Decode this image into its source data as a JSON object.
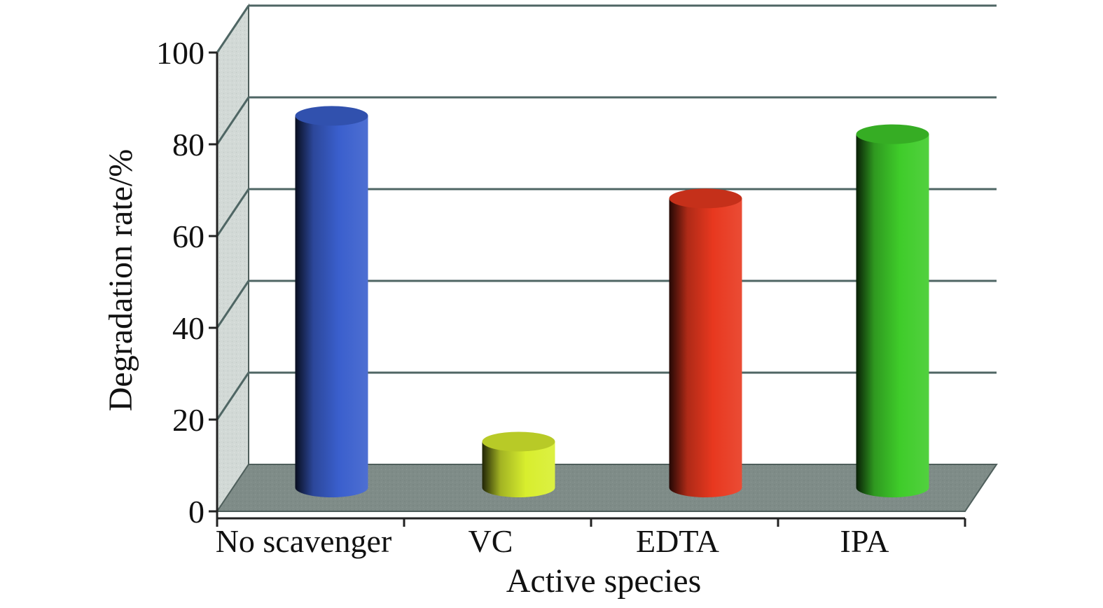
{
  "chart_data": {
    "type": "bar",
    "style": "3d-cylinder",
    "categories": [
      "No scavenger",
      "VC",
      "EDTA",
      "IPA"
    ],
    "values": [
      82,
      11,
      64,
      78
    ],
    "colors": [
      "#3a5fcd",
      "#d8ee2e",
      "#e8381f",
      "#3fcc2a"
    ],
    "xlabel": "Active species",
    "ylabel": "Degradation rate/%",
    "ylim": [
      0,
      100
    ],
    "yticks": [
      0,
      20,
      40,
      60,
      80,
      100
    ],
    "grid": true,
    "legend": "none"
  }
}
